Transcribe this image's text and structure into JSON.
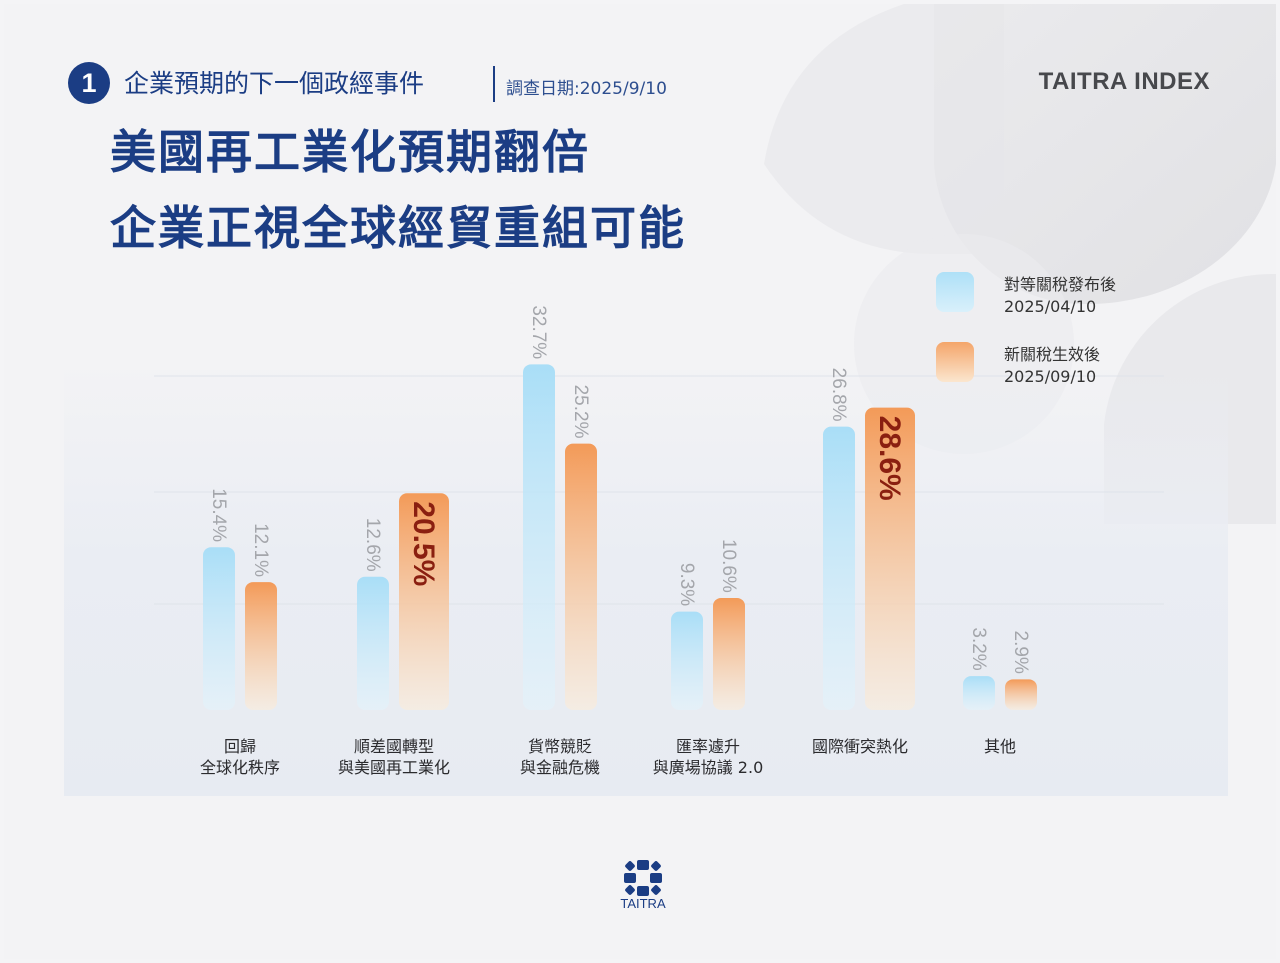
{
  "header": {
    "step_number": "1",
    "kicker": "企業預期的下一個政經事件",
    "survey_date": "調查日期:2025/9/10",
    "brand": "TAITRA INDEX",
    "headline_line1": "美國再工業化預期翻倍",
    "headline_line2": "企業正視全球經貿重組可能"
  },
  "legend": [
    {
      "label_line1": "對等關稅發布後",
      "label_line2": "2025/04/10"
    },
    {
      "label_line1": "新關稅生效後",
      "label_line2": "2025/09/10"
    }
  ],
  "footer": {
    "logo_text": "TAITRA"
  },
  "colors": {
    "navy": "#1b3d84",
    "series_blue_top": "#a9def7",
    "series_orange_top": "#f39a58",
    "highlight_label": "#8a1f10"
  },
  "chart_data": {
    "type": "bar",
    "categories": [
      [
        "回歸",
        "全球化秩序"
      ],
      [
        "順差國轉型",
        "與美國再工業化"
      ],
      [
        "貨幣競貶",
        "與金融危機"
      ],
      [
        "匯率遽升",
        "與廣場協議 2.0"
      ],
      [
        "國際衝突熱化"
      ],
      [
        "其他"
      ]
    ],
    "series": [
      {
        "name": "對等關稅發布後 2025/04/10",
        "values": [
          15.4,
          12.6,
          32.7,
          9.3,
          26.8,
          3.2
        ]
      },
      {
        "name": "新關稅生效後 2025/09/10",
        "values": [
          12.1,
          20.5,
          25.2,
          10.6,
          28.6,
          2.9
        ]
      }
    ],
    "value_labels": [
      [
        "15.4%",
        "12.6%",
        "32.7%",
        "9.3%",
        "26.8%",
        "3.2%"
      ],
      [
        "12.1%",
        "20.5%",
        "25.2%",
        "10.6%",
        "28.6%",
        "2.9%"
      ]
    ],
    "highlighted": [
      {
        "series": 1,
        "category": 1
      },
      {
        "series": 1,
        "category": 4
      }
    ],
    "ylim": [
      0,
      35
    ],
    "grid": true,
    "legend_position": "top-right"
  }
}
